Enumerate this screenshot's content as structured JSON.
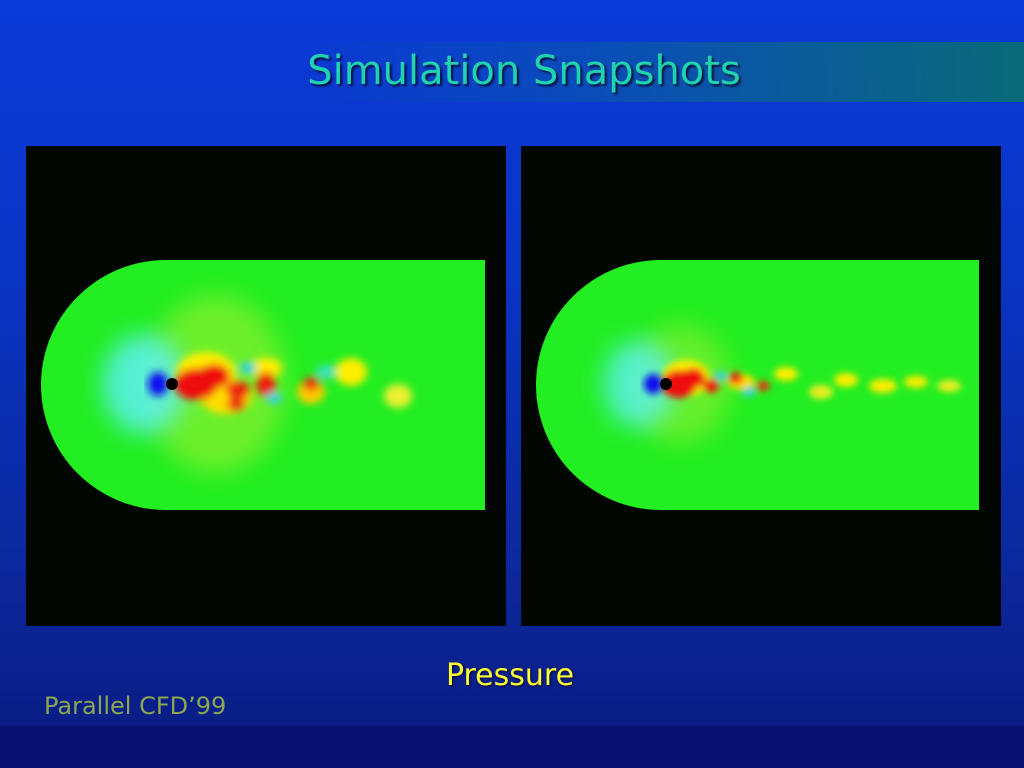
{
  "slide": {
    "title": "Simulation Snapshots",
    "caption": "Pressure",
    "footer": "Parallel CFD’99"
  },
  "colors": {
    "background": "#0a34c4",
    "title": "#1fd3b0",
    "caption": "#ffff33",
    "footer": "#8aa650",
    "field_base": "#22ee22",
    "high_pressure": "#ee1010",
    "mid_pressure": "#ffee00",
    "low_pressure": "#1010ee",
    "wake_low": "#20d8d8"
  },
  "snapshots": [
    {
      "id": "snapshot-1"
    },
    {
      "id": "snapshot-2"
    }
  ]
}
